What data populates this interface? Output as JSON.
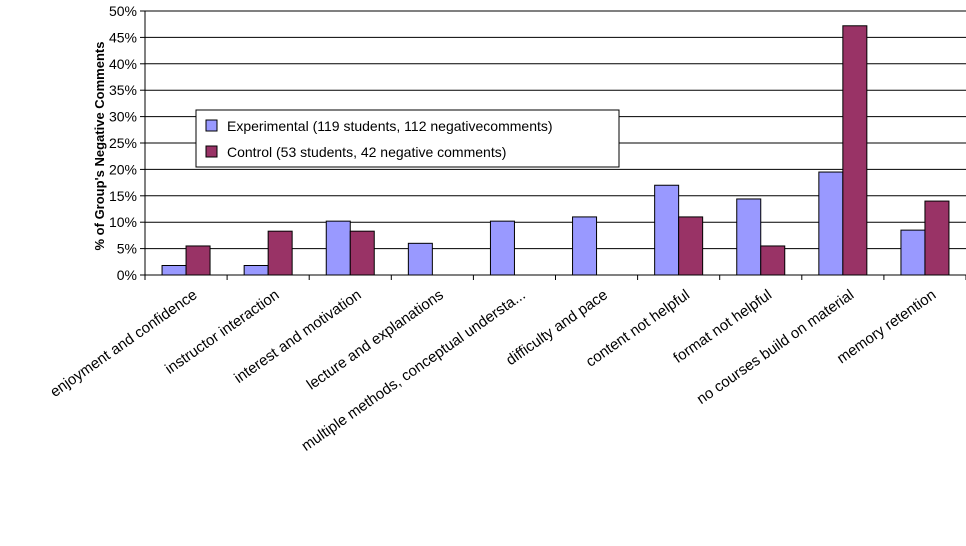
{
  "chart_data": {
    "type": "bar",
    "ylabel": "% of Group's Negative Comments",
    "xlabel": "",
    "ylim": [
      0,
      50
    ],
    "yticks": [
      0,
      5,
      10,
      15,
      20,
      25,
      30,
      35,
      40,
      45,
      50
    ],
    "ytick_labels": [
      "0%",
      "5%",
      "10%",
      "15%",
      "20%",
      "25%",
      "30%",
      "35%",
      "40%",
      "45%",
      "50%"
    ],
    "grid": true,
    "legend_position": "upper-left",
    "categories": [
      "enjoyment and confidence",
      "instructor interaction",
      "interest and motivation",
      "lecture and explanations",
      "multiple methods, conceptual understa...",
      "difficulty and pace",
      "content not helpful",
      "format not helpful",
      "no courses build on material",
      "memory retention"
    ],
    "series": [
      {
        "name": "Experimental (119 students, 112 negativecomments)",
        "color": "#9999ff",
        "values": [
          1.8,
          1.8,
          10.2,
          6.0,
          10.2,
          11.0,
          17.0,
          14.4,
          19.5,
          8.5
        ]
      },
      {
        "name": "Control (53 students, 42 negative comments)",
        "color": "#993366",
        "values": [
          5.5,
          8.3,
          8.3,
          0,
          0,
          0,
          11.0,
          5.5,
          47.2,
          14.0
        ]
      }
    ]
  }
}
